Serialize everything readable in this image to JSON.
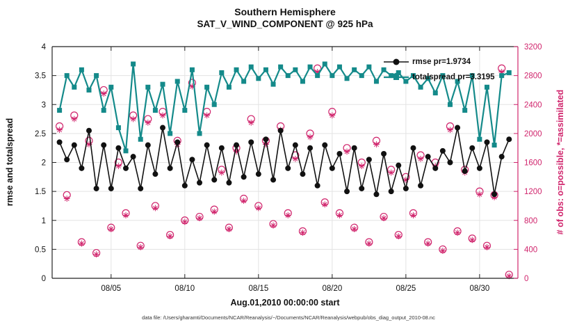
{
  "figure": {
    "title_line1": "Southern Hemisphere",
    "title_line2": "SAT_V_WIND_COMPONENT @ 925 hPa",
    "footer": "data file: /Users/gharamti/Documents/NCAR/Reanalysis/~/Documents/NCAR/Reanalysis/webpub/obs_diag_output_2010-08.nc"
  },
  "legend": {
    "rmse_label": "rmse pr=1.9734",
    "spread_label": "totalspread pr=3.3195"
  },
  "chart_data": {
    "type": "line",
    "title": "Southern Hemisphere",
    "subtitle": "SAT_V_WIND_COMPONENT @ 925 hPa",
    "grid": true,
    "legend_position": "top-right-inside",
    "x_axis": {
      "label": "Aug.01,2010 00:00:00 start",
      "range": [
        0,
        31.6
      ],
      "ticks": [
        4,
        9,
        14,
        19,
        24,
        29
      ],
      "tick_labels": [
        "08/05",
        "08/10",
        "08/15",
        "08/20",
        "08/25",
        "08/30"
      ]
    },
    "left_axis": {
      "label": "rmse and totalspread",
      "range": [
        0,
        4
      ],
      "ticks": [
        0,
        0.5,
        1,
        1.5,
        2,
        2.5,
        3,
        3.5,
        4
      ],
      "tick_labels": [
        "0",
        "0.5",
        "1",
        "1.5",
        "2",
        "2.5",
        "3",
        "3.5",
        "4"
      ],
      "color": "#111111"
    },
    "right_axis": {
      "label": "# of obs: o=possible, *=assimilated",
      "range": [
        0,
        3200
      ],
      "ticks": [
        0,
        400,
        800,
        1200,
        1600,
        2000,
        2400,
        2800,
        3200
      ],
      "tick_labels": [
        "0",
        "400",
        "800",
        "1200",
        "1600",
        "2000",
        "2400",
        "2800",
        "3200"
      ],
      "color": "#d0246c"
    },
    "x": [
      0.5,
      1,
      1.5,
      2,
      2.5,
      3,
      3.5,
      4,
      4.5,
      5,
      5.5,
      6,
      6.5,
      7,
      7.5,
      8,
      8.5,
      9,
      9.5,
      10,
      10.5,
      11,
      11.5,
      12,
      12.5,
      13,
      13.5,
      14,
      14.5,
      15,
      15.5,
      16,
      16.5,
      17,
      17.5,
      18,
      18.5,
      19,
      19.5,
      20,
      20.5,
      21,
      21.5,
      22,
      22.5,
      23,
      23.5,
      24,
      24.5,
      25,
      25.5,
      26,
      26.5,
      27,
      27.5,
      28,
      28.5,
      29,
      29.5,
      30,
      30.5,
      31
    ],
    "series": [
      {
        "name": "rmse",
        "mean": 1.9734,
        "color": "#111111",
        "marker": "circle-filled",
        "line": true,
        "axis": "left",
        "values": [
          2.35,
          2.05,
          2.3,
          1.9,
          2.55,
          1.55,
          2.3,
          1.55,
          2.25,
          1.9,
          2.1,
          1.55,
          2.3,
          1.8,
          2.6,
          1.9,
          2.35,
          1.6,
          2.05,
          1.65,
          2.3,
          1.7,
          2.25,
          1.65,
          2.3,
          1.75,
          2.35,
          1.8,
          2.4,
          1.7,
          2.55,
          1.9,
          2.3,
          1.8,
          2.25,
          1.6,
          2.3,
          1.9,
          2.15,
          1.5,
          2.25,
          1.55,
          2.05,
          1.45,
          2.15,
          1.5,
          1.95,
          1.55,
          2.25,
          1.6,
          2.1,
          1.9,
          2.2,
          2.0,
          2.6,
          1.85,
          2.25,
          1.9,
          2.35,
          1.45,
          2.1,
          2.4
        ]
      },
      {
        "name": "totalspread",
        "mean": 3.3195,
        "color": "#148a8a",
        "marker": "square-filled",
        "line": true,
        "axis": "left",
        "values": [
          2.9,
          3.5,
          3.3,
          3.6,
          3.25,
          3.5,
          2.9,
          3.3,
          2.6,
          2.2,
          3.7,
          2.4,
          3.3,
          2.9,
          3.35,
          2.5,
          3.4,
          2.9,
          3.6,
          2.5,
          3.3,
          3.0,
          3.55,
          3.3,
          3.6,
          3.4,
          3.65,
          3.45,
          3.6,
          3.35,
          3.65,
          3.5,
          3.6,
          3.4,
          3.65,
          3.5,
          3.7,
          3.5,
          3.65,
          3.45,
          3.6,
          3.5,
          3.65,
          3.4,
          3.6,
          3.5,
          3.55,
          3.4,
          3.5,
          3.3,
          3.45,
          3.2,
          3.5,
          3.0,
          3.4,
          2.9,
          3.5,
          2.4,
          3.3,
          2.3,
          3.5,
          3.55
        ]
      },
      {
        "name": "possible_obs",
        "color": "#d0246c",
        "marker": "circle-open",
        "line": false,
        "axis": "right",
        "values": [
          2100,
          1150,
          2250,
          500,
          1900,
          350,
          2600,
          700,
          1600,
          900,
          2250,
          450,
          2200,
          1000,
          2300,
          600,
          1900,
          800,
          2700,
          850,
          2300,
          950,
          1500,
          700,
          1800,
          1100,
          2200,
          1000,
          1900,
          750,
          2100,
          900,
          1700,
          650,
          2000,
          2900,
          1050,
          2300,
          900,
          1800,
          700,
          1600,
          500,
          1900,
          850,
          1500,
          600,
          1400,
          900,
          1700,
          500,
          1600,
          400,
          2100,
          650,
          1500,
          550,
          1200,
          450,
          1150,
          2900,
          50
        ]
      },
      {
        "name": "assimilated_obs",
        "color": "#d0246c",
        "marker": "asterisk",
        "line": false,
        "axis": "right",
        "values": [
          2050,
          1100,
          2200,
          480,
          1850,
          330,
          2550,
          680,
          1550,
          870,
          2200,
          430,
          2150,
          970,
          2250,
          580,
          1850,
          780,
          2650,
          830,
          2250,
          920,
          1460,
          680,
          1750,
          1070,
          2150,
          970,
          1850,
          730,
          2050,
          870,
          1650,
          630,
          1950,
          2850,
          1020,
          2250,
          870,
          1750,
          680,
          1550,
          480,
          1850,
          830,
          1460,
          580,
          1360,
          870,
          1650,
          480,
          1550,
          380,
          2050,
          630,
          1460,
          530,
          1160,
          430,
          1120,
          2850,
          30
        ]
      }
    ]
  }
}
